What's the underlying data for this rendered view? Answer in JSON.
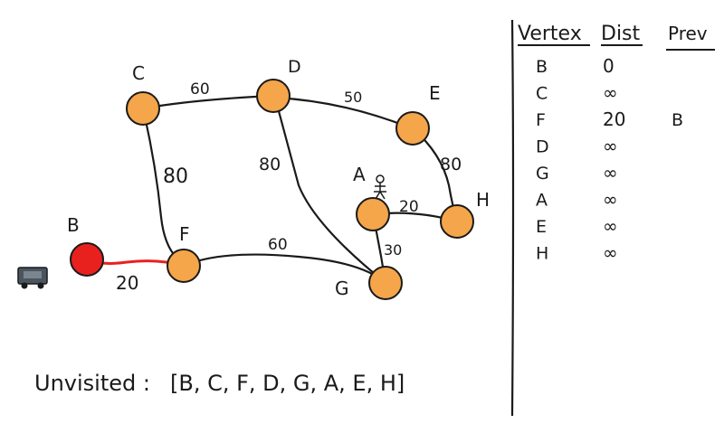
{
  "graph": {
    "nodes": [
      {
        "id": "C",
        "label": "C",
        "color": "#F5A54A"
      },
      {
        "id": "D",
        "label": "D",
        "color": "#F5A54A"
      },
      {
        "id": "E",
        "label": "E",
        "color": "#F5A54A"
      },
      {
        "id": "B",
        "label": "B",
        "color": "#E8211F"
      },
      {
        "id": "F",
        "label": "F",
        "color": "#F5A54A"
      },
      {
        "id": "A",
        "label": "A",
        "color": "#F5A54A"
      },
      {
        "id": "H",
        "label": "H",
        "color": "#F5A54A"
      },
      {
        "id": "G",
        "label": "G",
        "color": "#F5A54A"
      }
    ],
    "edges": [
      {
        "from": "C",
        "to": "D",
        "weight": "60"
      },
      {
        "from": "D",
        "to": "E",
        "weight": "50"
      },
      {
        "from": "C",
        "to": "F",
        "weight": "80"
      },
      {
        "from": "D",
        "to": "G",
        "weight": "80"
      },
      {
        "from": "E",
        "to": "H",
        "weight": "80"
      },
      {
        "from": "A",
        "to": "H",
        "weight": "20"
      },
      {
        "from": "A",
        "to": "G",
        "weight": "30"
      },
      {
        "from": "F",
        "to": "G",
        "weight": "60"
      },
      {
        "from": "B",
        "to": "F",
        "weight": "20",
        "highlighted": true
      }
    ],
    "highlight_color": "#E8211F",
    "edge_color": "#1a1a1a"
  },
  "table": {
    "headers": [
      "Vertex",
      "Dist",
      "Prev"
    ],
    "rows": [
      {
        "vertex": "B",
        "dist": "0",
        "prev": ""
      },
      {
        "vertex": "C",
        "dist": "∞",
        "prev": ""
      },
      {
        "vertex": "F",
        "dist": "20",
        "prev": "B"
      },
      {
        "vertex": "D",
        "dist": "∞",
        "prev": ""
      },
      {
        "vertex": "G",
        "dist": "∞",
        "prev": ""
      },
      {
        "vertex": "A",
        "dist": "∞",
        "prev": ""
      },
      {
        "vertex": "E",
        "dist": "∞",
        "prev": ""
      },
      {
        "vertex": "H",
        "dist": "∞",
        "prev": ""
      }
    ]
  },
  "unvisited": {
    "label": "Unvisited :",
    "list": "[B, C, F, D, G, A, E, H]"
  },
  "icons": {
    "person_icon": "stick-figure-icon",
    "car_icon": "car-icon"
  }
}
